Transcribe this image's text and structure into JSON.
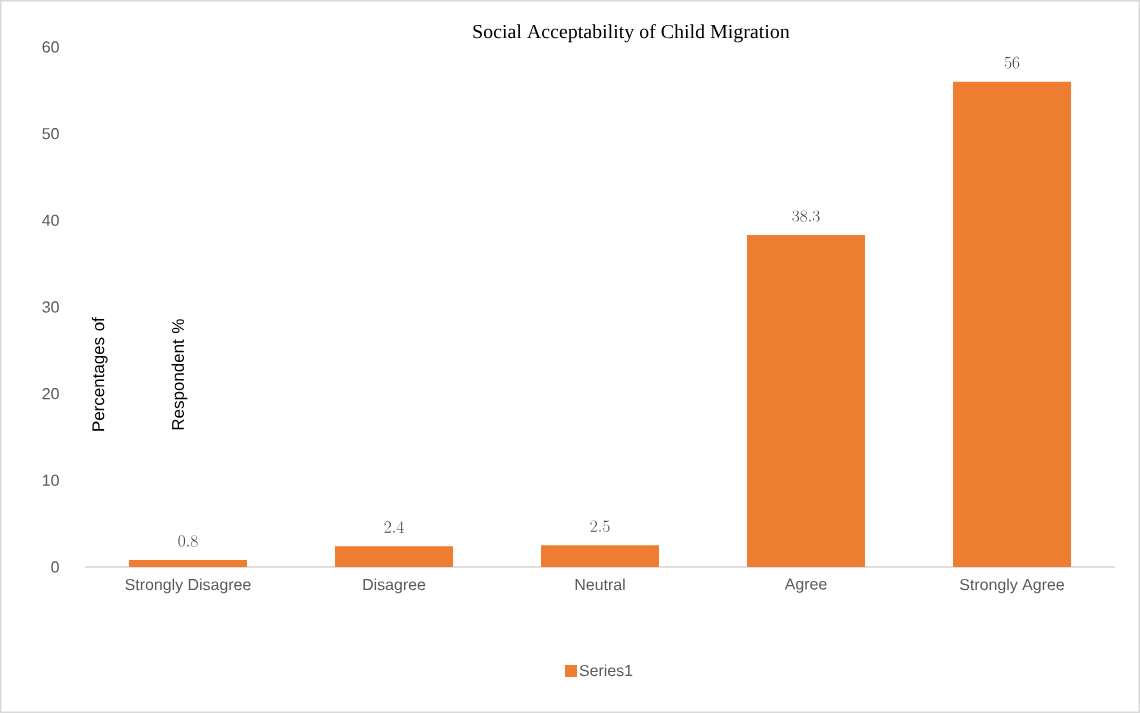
{
  "chart_data": {
    "type": "bar",
    "title": "Social Acceptability of Child Migration",
    "ylabel": "Percentages of Respondent %",
    "categories": [
      "Strongly Disagree",
      "Disagree",
      "Neutral",
      "Agree",
      "Strongly Agree"
    ],
    "series": [
      {
        "name": "Series1",
        "color": "#ed7d31",
        "values": [
          0.8,
          2.4,
          2.5,
          38.3,
          56
        ]
      }
    ],
    "ylim": [
      0,
      60
    ],
    "yticks": [
      0,
      10,
      20,
      30,
      40,
      50,
      60
    ],
    "grid": false,
    "legend": "bottom",
    "data_labels": true
  }
}
